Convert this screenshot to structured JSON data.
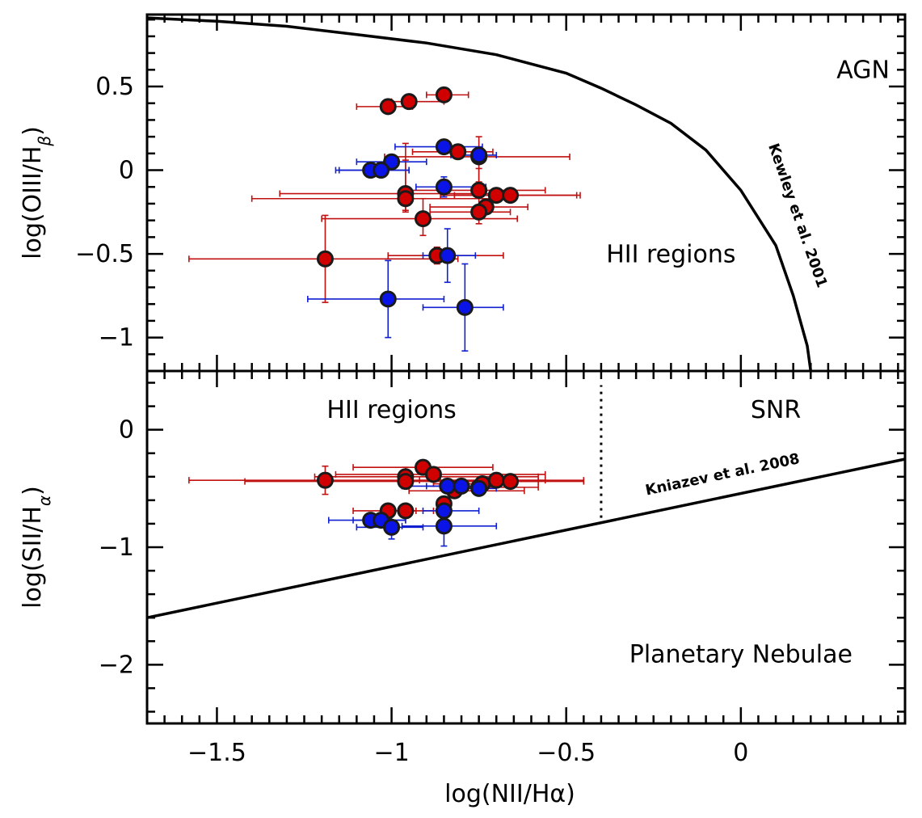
{
  "chart_data": {
    "type": "scatter",
    "xlabel": "log(NII/Hα)",
    "xlim": [
      -1.7,
      0.47
    ],
    "x_ticks": [
      -1.5,
      -1,
      -0.5,
      0
    ],
    "x_tick_labels": [
      "−1.5",
      "−1",
      "−0.5",
      "0"
    ],
    "colors": {
      "red": "#d00000",
      "blue": "#0a14e6",
      "red_err": "#c01010",
      "blue_err": "#1020d0"
    },
    "panels": [
      {
        "id": "top",
        "ylabel": {
          "main": "log(OIII/H",
          "sub": "β",
          "close": ")"
        },
        "ylim": [
          -1.2,
          0.93
        ],
        "y_ticks": [
          0.5,
          0,
          -0.5,
          -1
        ],
        "y_tick_labels": [
          "0.5",
          "0",
          "−0.5",
          "−1"
        ],
        "regions": [
          {
            "text": "AGN",
            "x": 0.35,
            "y": 0.55
          },
          {
            "text": "HII regions",
            "x": -0.2,
            "y": -0.55
          }
        ],
        "curve": {
          "label": "Kewley et al. 2001",
          "label_x": 0.15,
          "label_y": -0.28,
          "points": [
            [
              -1.7,
              0.91
            ],
            [
              -1.5,
              0.89
            ],
            [
              -1.3,
              0.86
            ],
            [
              -1.1,
              0.81
            ],
            [
              -0.9,
              0.76
            ],
            [
              -0.7,
              0.69
            ],
            [
              -0.5,
              0.58
            ],
            [
              -0.4,
              0.49
            ],
            [
              -0.3,
              0.39
            ],
            [
              -0.2,
              0.28
            ],
            [
              -0.1,
              0.12
            ],
            [
              0.0,
              -0.12
            ],
            [
              0.1,
              -0.45
            ],
            [
              0.15,
              -0.75
            ],
            [
              0.19,
              -1.05
            ],
            [
              0.2,
              -1.2
            ]
          ]
        },
        "series": [
          {
            "name": "red",
            "points": [
              {
                "x": -1.01,
                "y": 0.38,
                "xe": [
                  0.09,
                  0.07
                ],
                "ye": [
                  0,
                  0
                ]
              },
              {
                "x": -0.95,
                "y": 0.41,
                "xe": [
                  0.05,
                  0.1
                ],
                "ye": [
                  0,
                  0
                ]
              },
              {
                "x": -0.85,
                "y": 0.45,
                "xe": [
                  0.05,
                  0.07
                ],
                "ye": [
                  0,
                  0
                ]
              },
              {
                "x": -0.81,
                "y": 0.11,
                "xe": [
                  0.13,
                  0.1
                ],
                "ye": [
                  0,
                  0
                ]
              },
              {
                "x": -0.75,
                "y": 0.08,
                "xe": [
                  0.27,
                  0.26
                ],
                "ye": [
                  0.15,
                  0.12
                ]
              },
              {
                "x": -0.96,
                "y": -0.14,
                "xe": [
                  0.36,
                  0.27
                ],
                "ye": [
                  0.1,
                  0.3
                ]
              },
              {
                "x": -0.96,
                "y": -0.17,
                "xe": [
                  0.44,
                  0.29
                ],
                "ye": [
                  0.08,
                  0.23
                ]
              },
              {
                "x": -0.75,
                "y": -0.12,
                "xe": [
                  0.2,
                  0.19
                ],
                "ye": [
                  0.1,
                  0.13
                ]
              },
              {
                "x": -0.7,
                "y": -0.15,
                "xe": [
                  0.16,
                  0.24
                ],
                "ye": [
                  0,
                  0
                ]
              },
              {
                "x": -0.66,
                "y": -0.15,
                "xe": [
                  0.16,
                  0.19
                ],
                "ye": [
                  0,
                  0
                ]
              },
              {
                "x": -0.73,
                "y": -0.22,
                "xe": [
                  0.16,
                  0.12
                ],
                "ye": [
                  0,
                  0
                ]
              },
              {
                "x": -0.75,
                "y": -0.25,
                "xe": [
                  0.14,
                  0.09
                ],
                "ye": [
                  0.07,
                  0.04
                ]
              },
              {
                "x": -0.91,
                "y": -0.29,
                "xe": [
                  0.29,
                  0.27
                ],
                "ye": [
                  0.1,
                  0.12
                ]
              },
              {
                "x": -1.19,
                "y": -0.53,
                "xe": [
                  0.39,
                  0.38
                ],
                "ye": [
                  0.26,
                  0.26
                ]
              },
              {
                "x": -0.87,
                "y": -0.51,
                "xe": [
                  0.14,
                  0.19
                ],
                "ye": [
                  0.05,
                  0.05
                ]
              }
            ]
          },
          {
            "name": "blue",
            "points": [
              {
                "x": -0.85,
                "y": 0.14,
                "xe": [
                  0.14,
                  0.11
                ],
                "ye": [
                  0,
                  0
                ]
              },
              {
                "x": -0.75,
                "y": 0.09,
                "xe": [
                  0.08,
                  0.05
                ],
                "ye": [
                  0,
                  0
                ]
              },
              {
                "x": -1.0,
                "y": 0.05,
                "xe": [
                  0.1,
                  0.1
                ],
                "ye": [
                  0,
                  0
                ]
              },
              {
                "x": -1.06,
                "y": 0.0,
                "xe": [
                  0.1,
                  0.11
                ],
                "ye": [
                  0,
                  0
                ]
              },
              {
                "x": -1.03,
                "y": 0.0,
                "xe": [
                  0.12,
                  0.08
                ],
                "ye": [
                  0,
                  0
                ]
              },
              {
                "x": -0.85,
                "y": -0.1,
                "xe": [
                  0.08,
                  0.12
                ],
                "ye": [
                  0.06,
                  0.06
                ]
              },
              {
                "x": -0.84,
                "y": -0.51,
                "xe": [
                  0.07,
                  0.08
                ],
                "ye": [
                  0.16,
                  0.16
                ]
              },
              {
                "x": -1.01,
                "y": -0.77,
                "xe": [
                  0.23,
                  0.16
                ],
                "ye": [
                  0.23,
                  0.23
                ]
              },
              {
                "x": -0.79,
                "y": -0.82,
                "xe": [
                  0.12,
                  0.11
                ],
                "ye": [
                  0.26,
                  0.26
                ]
              }
            ]
          }
        ]
      },
      {
        "id": "bottom",
        "ylabel": {
          "main": "log(SII/H",
          "sub": "α",
          "close": ")"
        },
        "ylim": [
          -2.5,
          0.5
        ],
        "y_ticks": [
          0,
          -1,
          -2
        ],
        "y_tick_labels": [
          "0",
          "−1",
          "−2"
        ],
        "regions": [
          {
            "text": "HII regions",
            "x": -1.0,
            "y": 0.1
          },
          {
            "text": "SNR",
            "x": 0.1,
            "y": 0.1
          },
          {
            "text": "Planetary Nebulae",
            "x": 0.0,
            "y": -1.98
          }
        ],
        "divider": {
          "x": -0.4,
          "y_from": -0.75,
          "y_to": 0.38
        },
        "curve": {
          "label": "Kniazev et al. 2008",
          "label_x": -0.05,
          "label_y": -0.42,
          "points": [
            [
              -1.7,
              -1.6
            ],
            [
              0.47,
              -0.25
            ]
          ]
        },
        "series": [
          {
            "name": "red",
            "points": [
              {
                "x": -1.19,
                "y": -0.43,
                "xe": [
                  0.39,
                  0.63
                ],
                "ye": [
                  0.12,
                  0.12
                ]
              },
              {
                "x": -0.96,
                "y": -0.4,
                "xe": [
                  0.26,
                  0.38
                ],
                "ye": [
                  0.08,
                  0.08
                ]
              },
              {
                "x": -0.91,
                "y": -0.32,
                "xe": [
                  0.2,
                  0.2
                ],
                "ye": [
                  0.06,
                  0.06
                ]
              },
              {
                "x": -0.88,
                "y": -0.38,
                "xe": [
                  0.28,
                  0.32
                ],
                "ye": [
                  0.05,
                  0.05
                ]
              },
              {
                "x": -0.96,
                "y": -0.44,
                "xe": [
                  0.46,
                  0.38
                ],
                "ye": [
                  0.05,
                  0.05
                ]
              },
              {
                "x": -0.82,
                "y": -0.52,
                "xe": [
                  0.13,
                  0.2
                ],
                "ye": [
                  0.04,
                  0.04
                ]
              },
              {
                "x": -0.75,
                "y": -0.49,
                "xe": [
                  0.1,
                  0.17
                ],
                "ye": [
                  0.04,
                  0.04
                ]
              },
              {
                "x": -0.74,
                "y": -0.46,
                "xe": [
                  0.14,
                  0.09
                ],
                "ye": [
                  0.04,
                  0.04
                ]
              },
              {
                "x": -0.7,
                "y": -0.43,
                "xe": [
                  0.22,
                  0.25
                ],
                "ye": [
                  0.04,
                  0.04
                ]
              },
              {
                "x": -0.66,
                "y": -0.44,
                "xe": [
                  0.2,
                  0.21
                ],
                "ye": [
                  0.04,
                  0.04
                ]
              },
              {
                "x": -1.01,
                "y": -0.69,
                "xe": [
                  0.1,
                  0.08
                ],
                "ye": [
                  0,
                  0
                ]
              },
              {
                "x": -0.96,
                "y": -0.69,
                "xe": [
                  0.06,
                  0.08
                ],
                "ye": [
                  0.04,
                  0.04
                ]
              },
              {
                "x": -0.85,
                "y": -0.63,
                "xe": [
                  0,
                  0
                ],
                "ye": [
                  0.04,
                  0.04
                ]
              }
            ]
          },
          {
            "name": "blue",
            "points": [
              {
                "x": -0.84,
                "y": -0.48,
                "xe": [
                  0.13,
                  0.14
                ],
                "ye": [
                  0.05,
                  0.05
                ]
              },
              {
                "x": -0.8,
                "y": -0.48,
                "xe": [
                  0.1,
                  0.06
                ],
                "ye": [
                  0.05,
                  0.05
                ]
              },
              {
                "x": -0.75,
                "y": -0.5,
                "xe": [
                  0.07,
                  0.05
                ],
                "ye": [
                  0.04,
                  0.04
                ]
              },
              {
                "x": -0.85,
                "y": -0.69,
                "xe": [
                  0.06,
                  0.1
                ],
                "ye": [
                  0.06,
                  0.06
                ]
              },
              {
                "x": -1.06,
                "y": -0.77,
                "xe": [
                  0.12,
                  0.1
                ],
                "ye": [
                  0.06,
                  0.06
                ]
              },
              {
                "x": -1.03,
                "y": -0.77,
                "xe": [
                  0.08,
                  0.07
                ],
                "ye": [
                  0.06,
                  0.06
                ]
              },
              {
                "x": -1.0,
                "y": -0.83,
                "xe": [
                  0.1,
                  0.09
                ],
                "ye": [
                  0.1,
                  0.1
                ]
              },
              {
                "x": -0.85,
                "y": -0.82,
                "xe": [
                  0.12,
                  0.15
                ],
                "ye": [
                  0.17,
                  0.17
                ]
              }
            ]
          }
        ]
      }
    ]
  }
}
